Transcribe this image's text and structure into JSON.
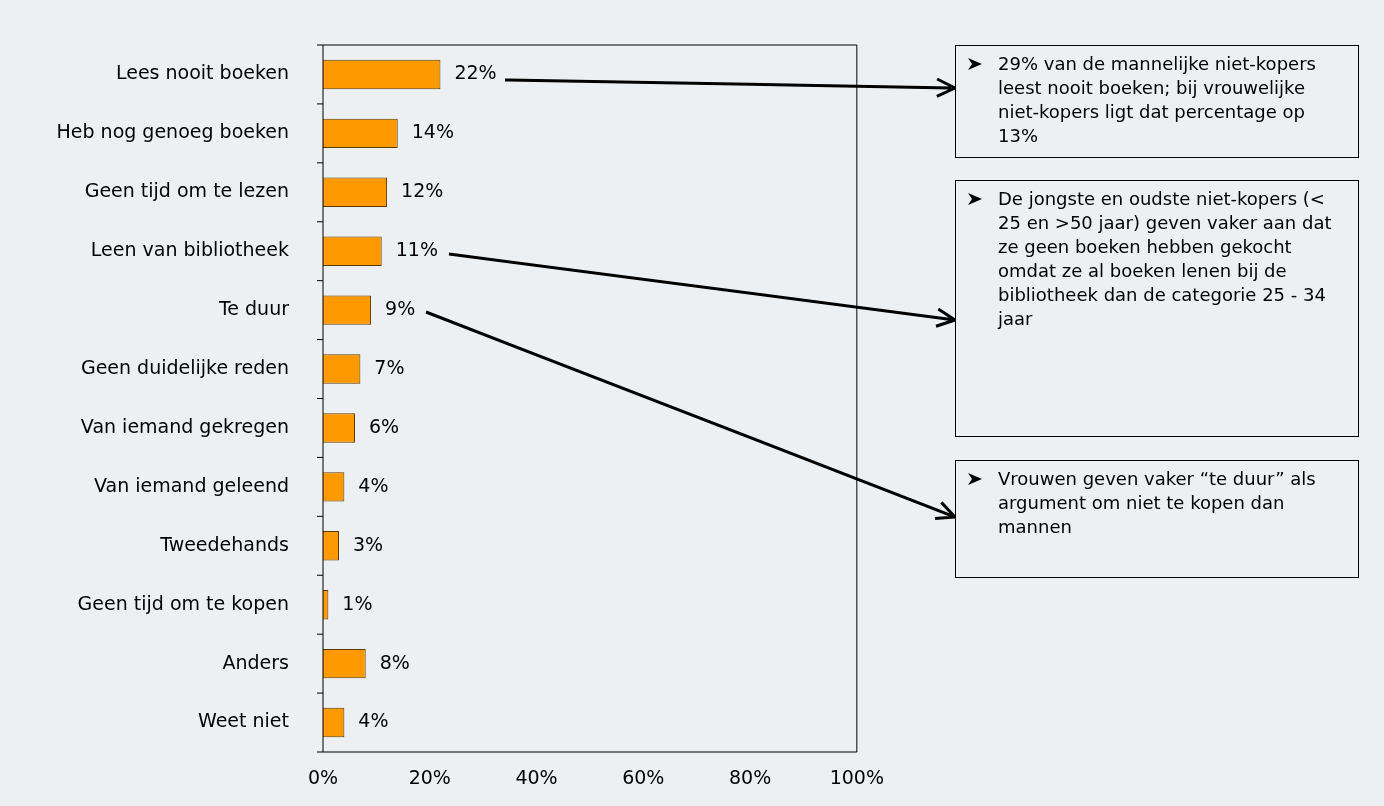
{
  "chart_data": {
    "type": "bar",
    "orientation": "horizontal",
    "categories": [
      "Lees nooit boeken",
      "Heb nog genoeg boeken",
      "Geen tijd om te lezen",
      "Leen van bibliotheek",
      "Te duur",
      "Geen duidelijke reden",
      "Van iemand gekregen",
      "Van iemand geleend",
      "Tweedehands",
      "Geen tijd om te kopen",
      "Anders",
      "Weet niet"
    ],
    "values": [
      22,
      14,
      12,
      11,
      9,
      7,
      6,
      4,
      3,
      1,
      8,
      4
    ],
    "value_labels": [
      "22%",
      "14%",
      "12%",
      "11%",
      "9%",
      "7%",
      "6%",
      "4%",
      "3%",
      "1%",
      "8%",
      "4%"
    ],
    "color": "#ff9900",
    "xlim": [
      0,
      100
    ],
    "xticks": [
      {
        "value": 0,
        "label": "0%"
      },
      {
        "value": 20,
        "label": "20%"
      },
      {
        "value": 40,
        "label": "40%"
      },
      {
        "value": 60,
        "label": "60%"
      },
      {
        "value": 80,
        "label": "80%"
      },
      {
        "value": 100,
        "label": "100%"
      }
    ],
    "grid": false,
    "legend": false,
    "annotations": [
      "29% van de mannelijke niet-kopers leest nooit boeken; bij vrouwelijke niet-kopers ligt dat percentage op 13%",
      "De jongste en oudste niet-kopers (< 25 en >50 jaar) geven vaker aan dat ze geen boeken hebben gekocht omdat ze al boeken lenen bij de bibliotheek dan de categorie 25 - 34 jaar",
      "Vrouwen geven vaker “te duur” als argument om niet te kopen dan mannen"
    ]
  }
}
